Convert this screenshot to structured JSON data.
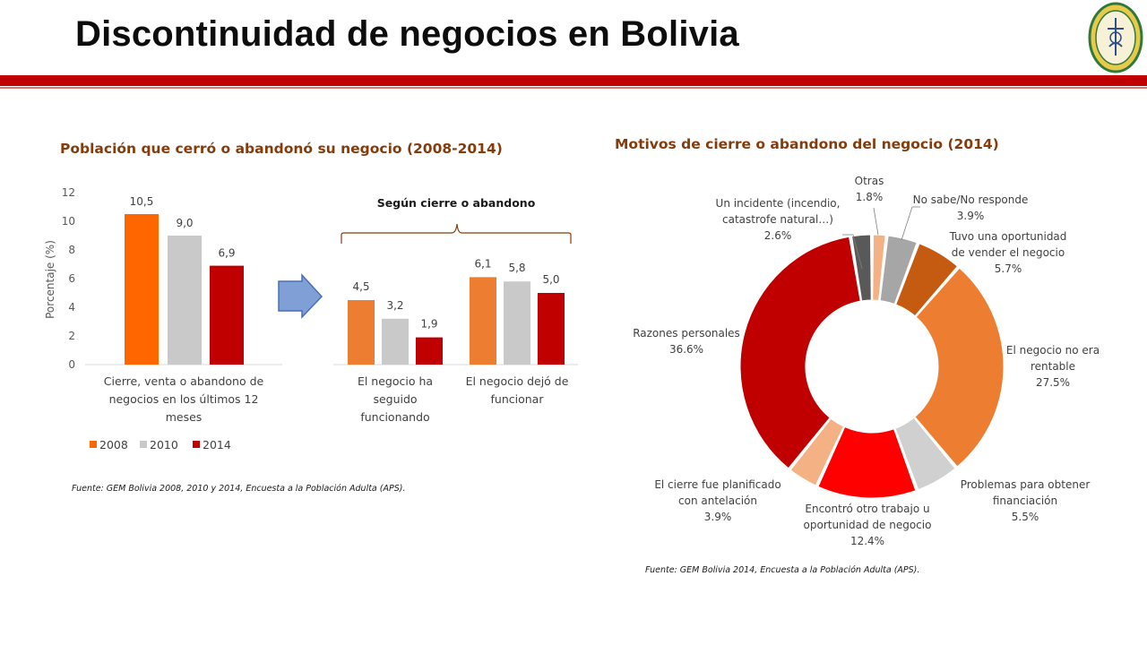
{
  "page": {
    "title": "Discontinuidad de negocios en Bolivia",
    "colors": {
      "accent_red": "#c00000",
      "title_brown": "#843c0c"
    },
    "logo": "university-seal-icon"
  },
  "left_panel": {
    "title": "Población que cerró o abandonó su negocio (2008-2014)",
    "source": "Fuente: GEM Bolivia 2008, 2010 y 2014, Encuesta a la Población Adulta (APS).",
    "arrow": "right-arrow-icon"
  },
  "right_panel": {
    "title": "Motivos de cierre o abandono del negocio (2014)",
    "source": "Fuente: GEM Bolivia 2014, Encuesta a la Población Adulta (APS)."
  },
  "chart_data": [
    {
      "type": "bar",
      "categories": [
        "Cierre, venta o abandono de negocios en los últimos 12 meses"
      ],
      "category_lines": [
        [
          "Cierre, venta o abandono de",
          "negocios en los últimos 12",
          "meses"
        ]
      ],
      "series": [
        {
          "name": "2008",
          "values": [
            10.5
          ],
          "labels": [
            "10,5"
          ],
          "color": "#ff6600"
        },
        {
          "name": "2010",
          "values": [
            9.0
          ],
          "labels": [
            "9,0"
          ],
          "color": "#c9c9c9"
        },
        {
          "name": "2014",
          "values": [
            6.9
          ],
          "labels": [
            "6,9"
          ],
          "color": "#c00000"
        }
      ],
      "ylabel": "Porcentaje (%)",
      "ylim": [
        0,
        12
      ],
      "yticks": [
        0,
        2,
        4,
        6,
        8,
        10,
        12
      ],
      "legend": "bottom",
      "grid": false
    },
    {
      "type": "bar",
      "title": "Según cierre o abandono",
      "categories": [
        "El negocio ha seguido funcionando",
        "El negocio dejó de funcionar"
      ],
      "category_lines": [
        [
          "El negocio ha",
          "seguido",
          "funcionando"
        ],
        [
          "El negocio dejó de",
          "funcionar"
        ]
      ],
      "series": [
        {
          "name": "2008",
          "values": [
            4.5,
            6.1
          ],
          "labels": [
            "4,5",
            "6,1"
          ],
          "color": "#ed7d31"
        },
        {
          "name": "2010",
          "values": [
            3.2,
            5.8
          ],
          "labels": [
            "3,2",
            "5,8"
          ],
          "color": "#c9c9c9"
        },
        {
          "name": "2014",
          "values": [
            1.9,
            5.0
          ],
          "labels": [
            "1,9",
            "5,0"
          ],
          "color": "#c00000"
        }
      ],
      "ylim": [
        0,
        12
      ],
      "grid": false
    },
    {
      "type": "pie",
      "donut": true,
      "slices": [
        {
          "label": [
            "Otras"
          ],
          "value": 1.8,
          "pct": "1.8%",
          "color": "#f4b183"
        },
        {
          "label": [
            "No sabe/No responde"
          ],
          "value": 3.9,
          "pct": "3.9%",
          "color": "#a6a6a6"
        },
        {
          "label": [
            "Tuvo una oportunidad",
            "de vender el negocio"
          ],
          "value": 5.7,
          "pct": "5.7%",
          "color": "#c55a11"
        },
        {
          "label": [
            "El negocio no era",
            "rentable"
          ],
          "value": 27.5,
          "pct": "27.5%",
          "color": "#ed7d31"
        },
        {
          "label": [
            "Problemas para obtener",
            "financiación"
          ],
          "value": 5.5,
          "pct": "5.5%",
          "color": "#d0d0d0"
        },
        {
          "label": [
            "Encontró otro trabajo u",
            "oportunidad de negocio"
          ],
          "value": 12.4,
          "pct": "12.4%",
          "color": "#ff0000"
        },
        {
          "label": [
            "El cierre fue planificado",
            "con antelación"
          ],
          "value": 3.9,
          "pct": "3.9%",
          "color": "#f4b183"
        },
        {
          "label": [
            "Razones personales"
          ],
          "value": 36.6,
          "pct": "36.6%",
          "color": "#c00000"
        },
        {
          "label": [
            "Un incidente (incendio,",
            "catastrofe natural…)"
          ],
          "value": 2.6,
          "pct": "2.6%",
          "color": "#595959"
        }
      ]
    }
  ]
}
